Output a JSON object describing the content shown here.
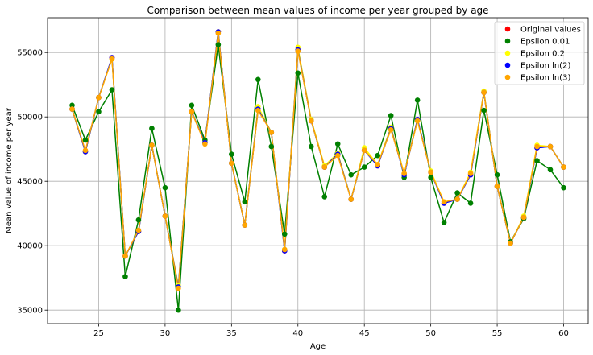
{
  "chart_data": {
    "type": "line",
    "title": "Comparison between mean values of income per year grouped by age",
    "xlabel": "Age",
    "ylabel": "Mean value of income per year",
    "xlim": [
      21.15,
      61.85
    ],
    "ylim": [
      33950,
      57700
    ],
    "xticks": [
      25,
      30,
      35,
      40,
      45,
      50,
      55,
      60
    ],
    "yticks": [
      35000,
      40000,
      45000,
      50000,
      55000
    ],
    "grid": true,
    "legend_position": "top-right",
    "x": [
      23,
      24,
      25,
      26,
      27,
      28,
      29,
      30,
      31,
      32,
      33,
      34,
      35,
      36,
      37,
      38,
      39,
      40,
      41,
      42,
      43,
      44,
      45,
      46,
      47,
      48,
      49,
      50,
      51,
      52,
      53,
      54,
      55,
      56,
      57,
      58,
      59,
      60
    ],
    "series": [
      {
        "name": "Original values",
        "color": "#ff0000",
        "line_color": "#1f77b4",
        "values": [
          50600,
          47300,
          51500,
          54600,
          39200,
          41100,
          47800,
          42300,
          36800,
          50400,
          48000,
          56600,
          46400,
          41600,
          50600,
          48800,
          39600,
          55200,
          49700,
          46100,
          47100,
          43600,
          47400,
          46200,
          49100,
          45500,
          49800,
          45700,
          43300,
          43600,
          45500,
          51900,
          44600,
          40200,
          42200,
          47600,
          47700,
          46100
        ]
      },
      {
        "name": "Epsilon 0.01",
        "color": "#008000",
        "line_color": "#008000",
        "values": [
          50900,
          48200,
          50400,
          52100,
          37600,
          42000,
          49100,
          44500,
          35000,
          50900,
          48200,
          55600,
          47100,
          43400,
          52900,
          47700,
          40900,
          53400,
          47700,
          43800,
          47900,
          45500,
          46100,
          47000,
          50100,
          45300,
          51300,
          45300,
          41800,
          44100,
          43300,
          50500,
          45500,
          40300,
          42100,
          46600,
          45900,
          44500
        ]
      },
      {
        "name": "Epsilon 0.2",
        "color": "#ffff00",
        "line_color": "#ffff00",
        "values": [
          50600,
          47300,
          51500,
          54500,
          39200,
          41100,
          47800,
          42300,
          36900,
          50400,
          48000,
          56600,
          46400,
          41600,
          50800,
          48800,
          39700,
          55400,
          49800,
          46200,
          47200,
          43600,
          47600,
          46300,
          49200,
          45600,
          49700,
          45800,
          43400,
          43600,
          45700,
          52000,
          44600,
          40200,
          42300,
          47800,
          47700,
          46100
        ]
      },
      {
        "name": "Epsilon ln(2)",
        "color": "#0000ff",
        "line_color": "#0000ff",
        "values": [
          50600,
          47300,
          51500,
          54600,
          39200,
          41100,
          47800,
          42300,
          36800,
          50400,
          48000,
          56600,
          46400,
          41600,
          50600,
          48800,
          39600,
          55200,
          49700,
          46100,
          47100,
          43600,
          47400,
          46200,
          49100,
          45500,
          49800,
          45700,
          43300,
          43600,
          45500,
          51900,
          44600,
          40200,
          42200,
          47600,
          47700,
          46100
        ]
      },
      {
        "name": "Epsilon ln(3)",
        "color": "#ffa500",
        "line_color": "#ffa500",
        "values": [
          50600,
          47400,
          51500,
          54500,
          39200,
          41200,
          47800,
          42300,
          36700,
          50400,
          47900,
          56500,
          46400,
          41600,
          50500,
          48800,
          39700,
          55100,
          49700,
          46100,
          47000,
          43600,
          47400,
          46300,
          49000,
          45600,
          49700,
          45700,
          43400,
          43600,
          45600,
          51900,
          44600,
          40200,
          42200,
          47700,
          47700,
          46100
        ]
      }
    ]
  }
}
